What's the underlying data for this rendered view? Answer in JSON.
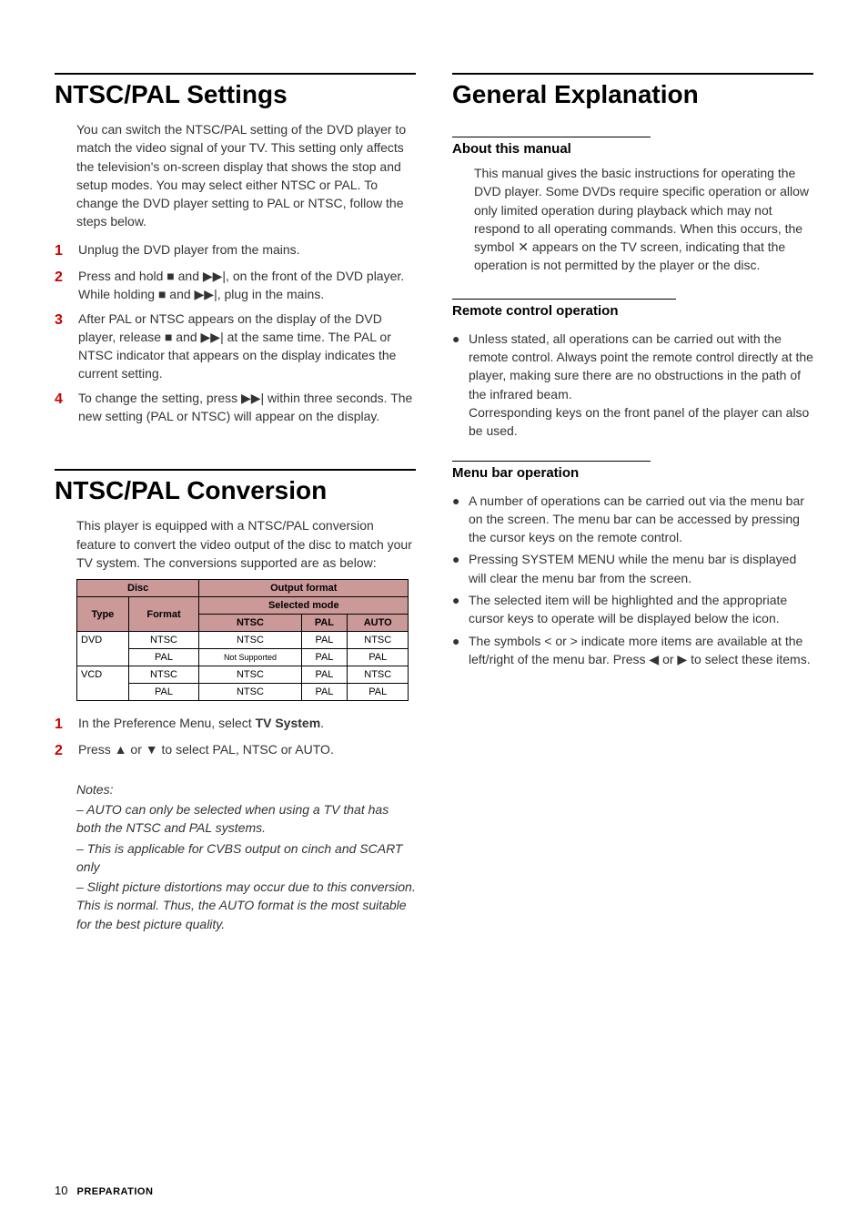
{
  "left": {
    "h1_ntsc_settings": "NTSC/PAL Settings",
    "p_ntsc_intro": "You can switch the NTSC/PAL setting of the DVD player to match the video signal of your TV. This setting only affects the television's on-screen display that shows the stop and setup modes. You may select either NTSC or PAL. To change the DVD player setting to PAL or NTSC, follow the steps below.",
    "steps_ntsc": [
      "Unplug the DVD player from the mains.",
      "Press and hold ■ and ▶▶|, on the front of the DVD player. While holding ■ and ▶▶|, plug in the mains.",
      "After PAL or NTSC appears on the display of the DVD player, release ■ and ▶▶| at the same time. The PAL or NTSC indicator that appears on the display indicates the current setting.",
      "To change the setting, press ▶▶| within three seconds. The new setting (PAL or NTSC) will appear on the display."
    ],
    "h1_conversion": "NTSC/PAL Conversion",
    "p_conv_intro": "This player is equipped with a NTSC/PAL conversion feature to convert the video output of the disc to match your TV system. The conversions supported are as below:",
    "conv_table": {
      "header_colors": {
        "bg": "#c99696"
      },
      "head": {
        "disc": "Disc",
        "output": "Output format",
        "type": "Type",
        "format": "Format",
        "selected": "Selected mode",
        "ntsc": "NTSC",
        "pal": "PAL",
        "auto": "AUTO"
      },
      "rows": [
        {
          "type": "DVD",
          "format": "NTSC",
          "ntsc": "NTSC",
          "pal": "PAL",
          "auto": "NTSC"
        },
        {
          "type": "",
          "format": "PAL",
          "ntsc": "Not Supported",
          "pal": "PAL",
          "auto": "PAL"
        },
        {
          "type": "VCD",
          "format": "NTSC",
          "ntsc": "NTSC",
          "pal": "PAL",
          "auto": "NTSC"
        },
        {
          "type": "",
          "format": "PAL",
          "ntsc": "NTSC",
          "pal": "PAL",
          "auto": "PAL"
        }
      ]
    },
    "step_conv_1_pre": "In the Preference Menu, select ",
    "step_conv_1_bold": "TV System",
    "step_conv_1_post": ".",
    "step_conv_2": "Press ▲ or ▼ to select PAL, NTSC or AUTO.",
    "notes_label": "Notes:",
    "notes": [
      "–   AUTO can only be selected when using a TV that has both the NTSC and PAL systems.",
      "–   This is applicable for CVBS output on cinch and SCART only",
      "–   Slight picture distortions may occur due to this conversion. This is normal. Thus, the AUTO format is the most suitable for the best picture quality."
    ]
  },
  "right": {
    "h1_general": "General Explanation",
    "sub_about": "About this manual",
    "p_about": "This manual gives the basic instructions for operating the DVD player. Some DVDs require specific operation or allow only limited operation during playback which may not respond to all operating commands. When this occurs, the symbol ✕ appears on the TV screen, indicating that the operation is not permitted by the player or the disc.",
    "sub_remote": "Remote control operation",
    "remote_bullet_1": "Unless stated, all operations can be carried out with the remote control. Always point the remote control directly at the player, making sure there are no obstructions in the path of the infrared beam.",
    "remote_para": "Corresponding keys on the front panel of the player can also be used.",
    "sub_menubar": "Menu bar operation",
    "menubar_bullets": [
      "A number of operations can be carried out via the menu bar on the screen. The menu bar can be accessed by pressing the cursor keys on the remote control.",
      "Pressing SYSTEM MENU while the menu bar is displayed will clear the menu bar from the screen.",
      "The selected item will be highlighted and the appropriate cursor keys to operate will be displayed below the icon.",
      "The symbols < or > indicate more items are available at the left/right of the menu bar. Press ◀ or ▶ to select these items."
    ]
  },
  "footer": {
    "page": "10",
    "section": "Preparation"
  }
}
